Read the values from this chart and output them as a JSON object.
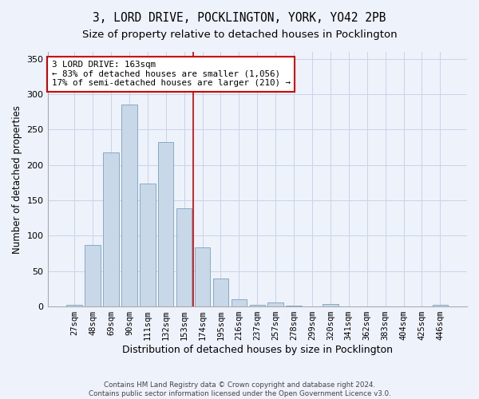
{
  "title_line1": "3, LORD DRIVE, POCKLINGTON, YORK, YO42 2PB",
  "title_line2": "Size of property relative to detached houses in Pocklington",
  "xlabel": "Distribution of detached houses by size in Pocklington",
  "ylabel": "Number of detached properties",
  "categories": [
    "27sqm",
    "48sqm",
    "69sqm",
    "90sqm",
    "111sqm",
    "132sqm",
    "153sqm",
    "174sqm",
    "195sqm",
    "216sqm",
    "237sqm",
    "257sqm",
    "278sqm",
    "299sqm",
    "320sqm",
    "341sqm",
    "362sqm",
    "383sqm",
    "404sqm",
    "425sqm",
    "446sqm"
  ],
  "values": [
    2,
    87,
    218,
    285,
    174,
    232,
    139,
    84,
    40,
    10,
    2,
    6,
    1,
    0,
    3,
    0,
    0,
    0,
    0,
    0,
    2
  ],
  "bar_color": "#c8d8e8",
  "bar_edge_color": "#7aA0c0",
  "grid_color": "#c8d4e8",
  "background_color": "#eef2fb",
  "annotation_text": "3 LORD DRIVE: 163sqm\n← 83% of detached houses are smaller (1,056)\n17% of semi-detached houses are larger (210) →",
  "annotation_box_color": "#ffffff",
  "annotation_box_edge": "#cc0000",
  "ylim": [
    0,
    360
  ],
  "yticks": [
    0,
    50,
    100,
    150,
    200,
    250,
    300,
    350
  ],
  "footer_line1": "Contains HM Land Registry data © Crown copyright and database right 2024.",
  "footer_line2": "Contains public sector information licensed under the Open Government Licence v3.0.",
  "title_fontsize": 10.5,
  "subtitle_fontsize": 9.5,
  "tick_fontsize": 7.5,
  "ylabel_fontsize": 8.5,
  "xlabel_fontsize": 9,
  "vline_pos": 6.5
}
